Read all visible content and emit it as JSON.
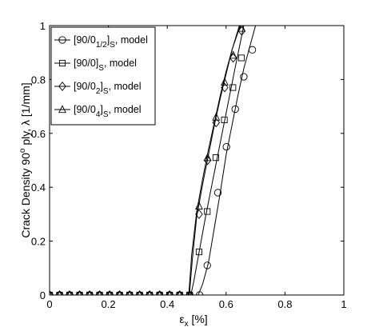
{
  "chart_data": {
    "type": "line",
    "xlabel": "ε",
    "xlabel_sub": "x",
    "xlabel_unit": "[%]",
    "ylabel": "Crack Density 90",
    "ylabel_sup": "o",
    "ylabel_rest": " ply, λ [1/mm]",
    "xlim": [
      0,
      1
    ],
    "ylim": [
      0,
      1
    ],
    "xticks": [
      "0",
      "0.2",
      "0.4",
      "0.6",
      "0.8",
      "1"
    ],
    "xtick_values": [
      0,
      0.2,
      0.4,
      0.6,
      0.8,
      1
    ],
    "yticks": [
      "0",
      "0.2",
      "0.4",
      "0.6",
      "0.8",
      "1"
    ],
    "ytick_values": [
      0,
      0.2,
      0.4,
      0.6,
      0.8,
      1
    ],
    "grid": false,
    "legend_position": "top-left",
    "series": [
      {
        "name": "[90/0",
        "name_sub": "1/2",
        "name_tail": "]",
        "name_sub2": "S",
        "name_suffix": ", model",
        "marker": "circle",
        "line_x": [
          0,
          0.505,
          0.52,
          0.54,
          0.56,
          0.58,
          0.6,
          0.62,
          0.64,
          0.66,
          0.7
        ],
        "line_y": [
          0,
          0,
          0.04,
          0.12,
          0.25,
          0.38,
          0.52,
          0.63,
          0.74,
          0.84,
          1.0
        ],
        "marker_x": [
          0,
          0.034,
          0.068,
          0.102,
          0.136,
          0.17,
          0.204,
          0.238,
          0.272,
          0.306,
          0.34,
          0.374,
          0.408,
          0.442,
          0.476,
          0.51,
          0.536,
          0.572,
          0.601,
          0.631,
          0.66,
          0.689
        ],
        "marker_y": [
          0,
          0,
          0,
          0,
          0,
          0,
          0,
          0,
          0,
          0,
          0,
          0,
          0,
          0,
          0,
          0,
          0.11,
          0.38,
          0.55,
          0.69,
          0.81,
          0.91
        ]
      },
      {
        "name": "[90/0]",
        "name_sub": "S",
        "name_tail": "",
        "name_sub2": "",
        "name_suffix": ", model",
        "marker": "square",
        "line_x": [
          0,
          0.48,
          0.49,
          0.51,
          0.53,
          0.55,
          0.57,
          0.59,
          0.61,
          0.63,
          0.66
        ],
        "line_y": [
          0,
          0,
          0.05,
          0.17,
          0.29,
          0.4,
          0.51,
          0.62,
          0.73,
          0.84,
          1.0
        ],
        "marker_x": [
          0,
          0.034,
          0.068,
          0.102,
          0.136,
          0.17,
          0.204,
          0.238,
          0.272,
          0.306,
          0.34,
          0.374,
          0.408,
          0.442,
          0.476,
          0.508,
          0.536,
          0.565,
          0.594,
          0.623,
          0.652
        ],
        "marker_y": [
          0,
          0,
          0,
          0,
          0,
          0,
          0,
          0,
          0,
          0,
          0,
          0,
          0,
          0,
          0,
          0.16,
          0.31,
          0.51,
          0.65,
          0.77,
          0.88
        ]
      },
      {
        "name": "[90/0",
        "name_sub": "2",
        "name_tail": "]",
        "name_sub2": "S",
        "name_suffix": ", model",
        "marker": "diamond",
        "line_x": [
          0,
          0.475,
          0.485,
          0.5,
          0.52,
          0.54,
          0.56,
          0.58,
          0.6,
          0.62,
          0.645
        ],
        "line_y": [
          0,
          0,
          0.13,
          0.29,
          0.41,
          0.52,
          0.63,
          0.73,
          0.82,
          0.91,
          1.0
        ],
        "marker_x": [
          0,
          0.034,
          0.068,
          0.102,
          0.136,
          0.17,
          0.204,
          0.238,
          0.272,
          0.306,
          0.34,
          0.374,
          0.408,
          0.442,
          0.476,
          0.508,
          0.537,
          0.566,
          0.595,
          0.624,
          0.653
        ],
        "marker_y": [
          0,
          0,
          0,
          0,
          0,
          0,
          0,
          0,
          0,
          0,
          0,
          0,
          0,
          0,
          0,
          0.3,
          0.5,
          0.64,
          0.77,
          0.88,
          0.98
        ]
      },
      {
        "name": "[90/0",
        "name_sub": "4",
        "name_tail": "]",
        "name_sub2": "S",
        "name_suffix": ", model",
        "marker": "triangle",
        "line_x": [
          0,
          0.473,
          0.483,
          0.5,
          0.52,
          0.54,
          0.56,
          0.58,
          0.6,
          0.62,
          0.648
        ],
        "line_y": [
          0,
          0,
          0.15,
          0.31,
          0.43,
          0.54,
          0.64,
          0.74,
          0.83,
          0.91,
          1.0
        ],
        "marker_x": [
          0,
          0.034,
          0.068,
          0.102,
          0.136,
          0.17,
          0.204,
          0.238,
          0.272,
          0.306,
          0.34,
          0.374,
          0.408,
          0.442,
          0.476,
          0.508,
          0.537,
          0.566,
          0.595,
          0.624,
          0.653
        ],
        "marker_y": [
          0,
          0,
          0,
          0,
          0,
          0,
          0,
          0,
          0,
          0,
          0,
          0,
          0,
          0,
          0,
          0.33,
          0.51,
          0.66,
          0.79,
          0.89,
          0.99
        ]
      }
    ]
  }
}
